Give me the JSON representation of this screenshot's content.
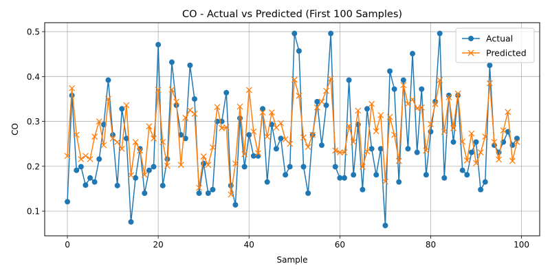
{
  "chart_data": {
    "type": "line",
    "title": "CO - Actual vs Predicted (First 100 Samples)",
    "xlabel": "Sample",
    "ylabel": "CO",
    "xlim": [
      -5,
      104
    ],
    "ylim": [
      0.045,
      0.52
    ],
    "xticks": [
      0,
      20,
      40,
      60,
      80,
      100
    ],
    "yticks": [
      0.1,
      0.2,
      0.3,
      0.4,
      0.5
    ],
    "xtick_labels": [
      "0",
      "20",
      "40",
      "60",
      "80",
      "100"
    ],
    "ytick_labels": [
      "0.1",
      "0.2",
      "0.3",
      "0.4",
      "0.5"
    ],
    "grid": true,
    "legend_position": "top-right",
    "series": [
      {
        "name": "Actual",
        "color": "#1f77b4",
        "marker": "circle",
        "values": [
          0.121,
          0.358,
          0.191,
          0.199,
          0.158,
          0.174,
          0.165,
          0.216,
          0.293,
          0.392,
          0.27,
          0.157,
          0.328,
          0.262,
          0.076,
          0.174,
          0.239,
          0.14,
          0.191,
          0.199,
          0.471,
          0.157,
          0.216,
          0.432,
          0.336,
          0.27,
          0.262,
          0.425,
          0.35,
          0.14,
          0.206,
          0.14,
          0.148,
          0.3,
          0.3,
          0.364,
          0.157,
          0.114,
          0.307,
          0.199,
          0.27,
          0.223,
          0.223,
          0.328,
          0.165,
          0.293,
          0.239,
          0.262,
          0.181,
          0.199,
          0.496,
          0.457,
          0.199,
          0.14,
          0.27,
          0.344,
          0.247,
          0.336,
          0.496,
          0.199,
          0.174,
          0.174,
          0.392,
          0.181,
          0.293,
          0.148,
          0.328,
          0.239,
          0.181,
          0.239,
          0.068,
          0.412,
          0.372,
          0.165,
          0.392,
          0.239,
          0.451,
          0.231,
          0.372,
          0.181,
          0.277,
          0.344,
          0.496,
          0.174,
          0.358,
          0.254,
          0.358,
          0.191,
          0.181,
          0.231,
          0.254,
          0.148,
          0.165,
          0.425,
          0.247,
          0.231,
          0.254,
          0.277,
          0.247,
          0.262
        ]
      },
      {
        "name": "Predicted",
        "color": "#ff7f0e",
        "marker": "x",
        "values": [
          0.223,
          0.374,
          0.27,
          0.216,
          0.223,
          0.216,
          0.266,
          0.3,
          0.247,
          0.35,
          0.262,
          0.254,
          0.239,
          0.336,
          0.18,
          0.254,
          0.235,
          0.181,
          0.289,
          0.262,
          0.37,
          0.254,
          0.201,
          0.371,
          0.344,
          0.203,
          0.308,
          0.325,
          0.317,
          0.152,
          0.222,
          0.203,
          0.242,
          0.332,
          0.285,
          0.287,
          0.137,
          0.206,
          0.333,
          0.227,
          0.37,
          0.277,
          0.229,
          0.32,
          0.266,
          0.32,
          0.286,
          0.296,
          0.26,
          0.25,
          0.393,
          0.357,
          0.264,
          0.243,
          0.27,
          0.331,
          0.344,
          0.368,
          0.395,
          0.235,
          0.231,
          0.231,
          0.29,
          0.254,
          0.324,
          0.199,
          0.233,
          0.339,
          0.278,
          0.314,
          0.166,
          0.31,
          0.27,
          0.212,
          0.381,
          0.339,
          0.349,
          0.329,
          0.331,
          0.235,
          0.294,
          0.339,
          0.392,
          0.277,
          0.354,
          0.285,
          0.362,
          0.255,
          0.213,
          0.273,
          0.207,
          0.231,
          0.266,
          0.385,
          0.254,
          0.215,
          0.28,
          0.321,
          0.212,
          0.254
        ]
      }
    ]
  }
}
